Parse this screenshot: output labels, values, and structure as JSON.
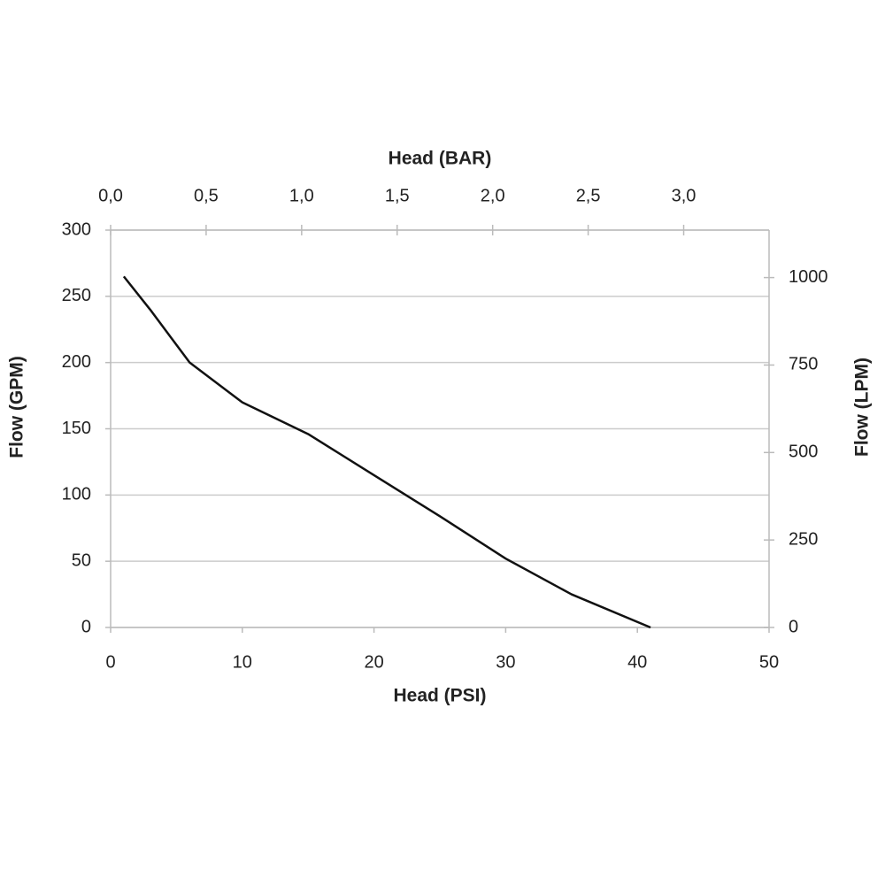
{
  "chart_data": {
    "type": "line",
    "x_label": "Head (PSI)",
    "x2_label": "Head (BAR)",
    "y_label": "Flow (GPM)",
    "y2_label": "Flow (LPM)",
    "x": [
      1,
      3,
      6,
      10,
      15,
      20,
      25,
      30,
      35,
      41
    ],
    "values": [
      265,
      240,
      200,
      170,
      146,
      115,
      84,
      52,
      25,
      0
    ],
    "color": "#111111",
    "xlim": [
      0,
      50
    ],
    "xticks": [
      0,
      10,
      20,
      30,
      40,
      50
    ],
    "x2lim": [
      0,
      3.447
    ],
    "x2ticks": [
      {
        "value": 0,
        "label": "0,0"
      },
      {
        "value": 0.5,
        "label": "0,5"
      },
      {
        "value": 1,
        "label": "1,0"
      },
      {
        "value": 1.5,
        "label": "1,5"
      },
      {
        "value": 2,
        "label": "2,0"
      },
      {
        "value": 2.5,
        "label": "2,5"
      },
      {
        "value": 3,
        "label": "3,0"
      }
    ],
    "ylim": [
      0,
      300
    ],
    "yticks": [
      0,
      50,
      100,
      150,
      200,
      250,
      300
    ],
    "y2lim": [
      0,
      1135.6
    ],
    "y2ticks": [
      0,
      250,
      500,
      750,
      1000
    ],
    "grid": true
  }
}
